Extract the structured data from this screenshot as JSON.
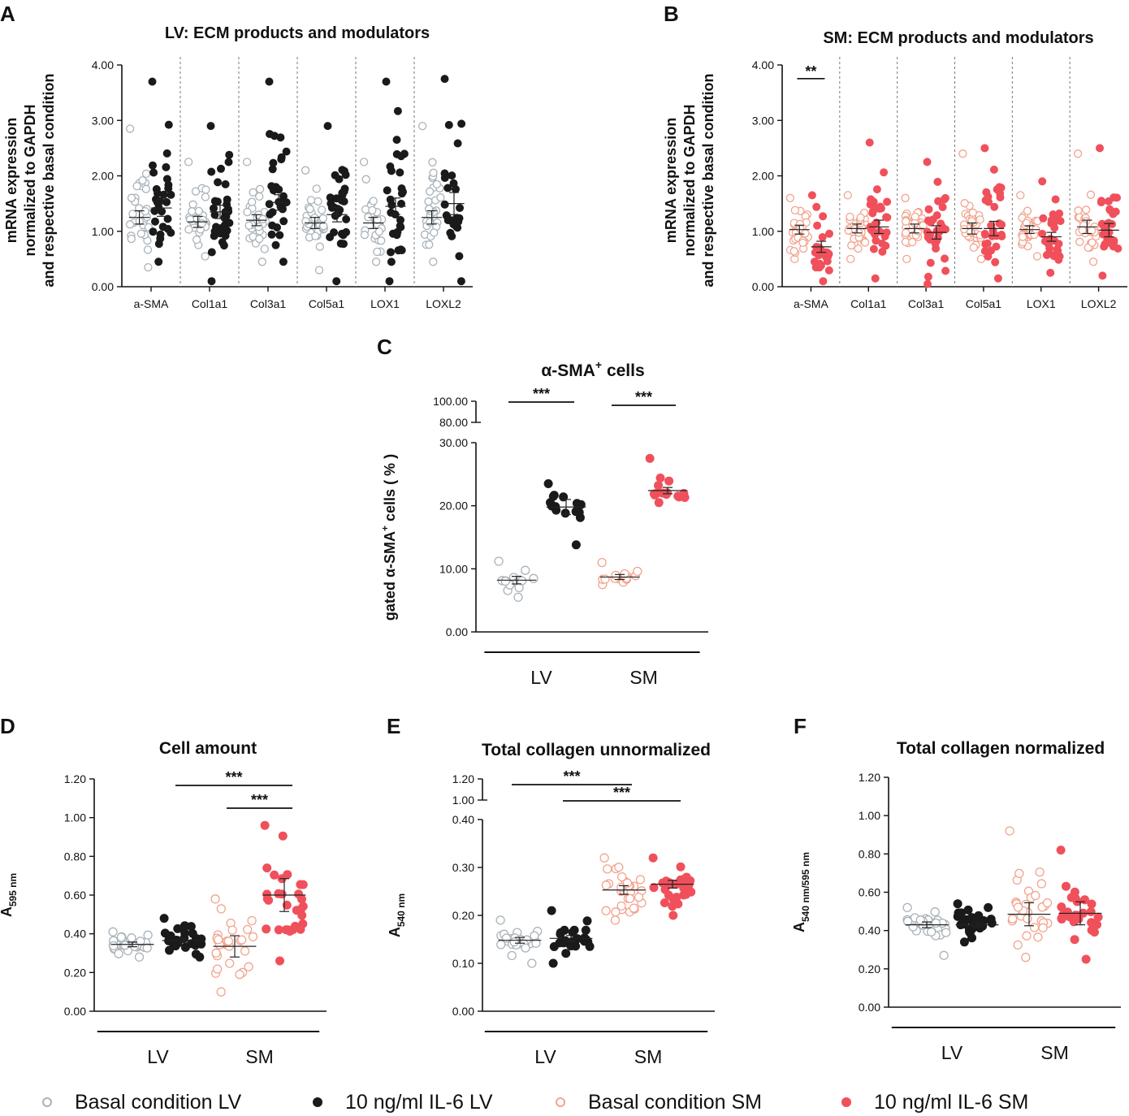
{
  "colors": {
    "basal_lv": "#a9b3ba",
    "il6_lv": "#1a1a1a",
    "basal_sm": "#f2a48f",
    "il6_sm": "#f0505b"
  },
  "legend": [
    {
      "label": "Basal condition LV",
      "group": "basal_lv",
      "marker": "hollow-circle-icon"
    },
    {
      "label": "10 ng/ml IL-6 LV",
      "group": "il6_lv",
      "marker": "filled-circle-icon"
    },
    {
      "label": "Basal condition SM",
      "group": "basal_sm",
      "marker": "hollow-circle-icon"
    },
    {
      "label": "10 ng/ml IL-6 SM",
      "group": "il6_sm",
      "marker": "filled-circle-icon"
    }
  ],
  "chart_data": [
    {
      "id": "A",
      "panel_letter": "A",
      "type": "scatter",
      "title": "LV: ECM products and modulators",
      "ylabel_lines": [
        "mRNA expression",
        "normalized to GAPDH",
        "and respective basal condition"
      ],
      "ylim": [
        0,
        4
      ],
      "yticks": [
        "0.00",
        "1.00",
        "2.00",
        "3.00",
        "4.00"
      ],
      "categories": [
        "a-SMA",
        "Col1a1",
        "Col3a1",
        "Col5a1",
        "LOX1",
        "LOXL2"
      ],
      "series_groups": [
        "basal_lv",
        "il6_lv"
      ],
      "groups": [
        {
          "category": "a-SMA",
          "series": [
            {
              "group": "basal_lv",
              "mean": 1.25,
              "sem": 0.12,
              "n": 30,
              "min": 0.35,
              "max": 2.85
            },
            {
              "group": "il6_lv",
              "mean": 1.42,
              "sem": 0.15,
              "n": 30,
              "min": 0.45,
              "max": 3.7
            }
          ]
        },
        {
          "category": "Col1a1",
          "series": [
            {
              "group": "basal_lv",
              "mean": 1.17,
              "sem": 0.1,
              "n": 30,
              "min": 0.55,
              "max": 2.25
            },
            {
              "group": "il6_lv",
              "mean": 1.35,
              "sem": 0.12,
              "n": 32,
              "min": 0.1,
              "max": 2.9
            }
          ]
        },
        {
          "category": "Col3a1",
          "series": [
            {
              "group": "basal_lv",
              "mean": 1.2,
              "sem": 0.1,
              "n": 30,
              "min": 0.45,
              "max": 2.25
            },
            {
              "group": "il6_lv",
              "mean": 1.52,
              "sem": 0.14,
              "n": 30,
              "min": 0.45,
              "max": 3.7
            }
          ]
        },
        {
          "category": "Col5a1",
          "series": [
            {
              "group": "basal_lv",
              "mean": 1.15,
              "sem": 0.1,
              "n": 30,
              "min": 0.3,
              "max": 2.1
            },
            {
              "group": "il6_lv",
              "mean": 1.3,
              "sem": 0.13,
              "n": 30,
              "min": 0.1,
              "max": 2.9
            }
          ]
        },
        {
          "category": "LOX1",
          "series": [
            {
              "group": "basal_lv",
              "mean": 1.15,
              "sem": 0.1,
              "n": 30,
              "min": 0.45,
              "max": 2.25
            },
            {
              "group": "il6_lv",
              "mean": 1.45,
              "sem": 0.15,
              "n": 30,
              "min": 0.1,
              "max": 3.7
            }
          ]
        },
        {
          "category": "LOXL2",
          "series": [
            {
              "group": "basal_lv",
              "mean": 1.25,
              "sem": 0.12,
              "n": 30,
              "min": 0.45,
              "max": 2.9
            },
            {
              "group": "il6_lv",
              "mean": 1.5,
              "sem": 0.2,
              "n": 30,
              "min": 0.1,
              "max": 3.75
            }
          ]
        }
      ],
      "significance": []
    },
    {
      "id": "B",
      "panel_letter": "B",
      "type": "scatter",
      "title": "SM: ECM products and modulators",
      "ylabel_lines": [
        "mRNA expression",
        "normalized to GAPDH",
        "and respective basal condition"
      ],
      "ylim": [
        0,
        4
      ],
      "yticks": [
        "0.00",
        "1.00",
        "2.00",
        "3.00",
        "4.00"
      ],
      "categories": [
        "a-SMA",
        "Col1a1",
        "Col3a1",
        "Col5a1",
        "LOX1",
        "LOXL2"
      ],
      "series_groups": [
        "basal_sm",
        "il6_sm"
      ],
      "groups": [
        {
          "category": "a-SMA",
          "series": [
            {
              "group": "basal_sm",
              "mean": 1.03,
              "sem": 0.08,
              "n": 30,
              "min": 0.5,
              "max": 1.6
            },
            {
              "group": "il6_sm",
              "mean": 0.72,
              "sem": 0.1,
              "n": 30,
              "min": 0.1,
              "max": 1.65
            }
          ]
        },
        {
          "category": "Col1a1",
          "series": [
            {
              "group": "basal_sm",
              "mean": 1.05,
              "sem": 0.08,
              "n": 30,
              "min": 0.5,
              "max": 1.65
            },
            {
              "group": "il6_sm",
              "mean": 1.08,
              "sem": 0.12,
              "n": 30,
              "min": 0.15,
              "max": 2.6
            }
          ]
        },
        {
          "category": "Col3a1",
          "series": [
            {
              "group": "basal_sm",
              "mean": 1.05,
              "sem": 0.08,
              "n": 30,
              "min": 0.5,
              "max": 1.6
            },
            {
              "group": "il6_sm",
              "mean": 0.98,
              "sem": 0.12,
              "n": 30,
              "min": 0.05,
              "max": 2.25
            }
          ]
        },
        {
          "category": "Col5a1",
          "series": [
            {
              "group": "basal_sm",
              "mean": 1.05,
              "sem": 0.1,
              "n": 30,
              "min": 0.5,
              "max": 2.4
            },
            {
              "group": "il6_sm",
              "mean": 1.05,
              "sem": 0.13,
              "n": 30,
              "min": 0.15,
              "max": 2.5
            }
          ]
        },
        {
          "category": "LOX1",
          "series": [
            {
              "group": "basal_sm",
              "mean": 1.03,
              "sem": 0.07,
              "n": 30,
              "min": 0.55,
              "max": 1.65
            },
            {
              "group": "il6_sm",
              "mean": 0.9,
              "sem": 0.08,
              "n": 30,
              "min": 0.25,
              "max": 1.9
            }
          ]
        },
        {
          "category": "LOXL2",
          "series": [
            {
              "group": "basal_sm",
              "mean": 1.08,
              "sem": 0.12,
              "n": 30,
              "min": 0.45,
              "max": 2.4
            },
            {
              "group": "il6_sm",
              "mean": 1.02,
              "sem": 0.12,
              "n": 30,
              "min": 0.2,
              "max": 2.5
            }
          ]
        }
      ],
      "significance": [
        {
          "from_series": 0,
          "to_series": 1,
          "category": "a-SMA",
          "label": "**",
          "y": 3.9
        }
      ]
    },
    {
      "id": "C",
      "panel_letter": "C",
      "type": "scatter",
      "title_main": "α-SMA",
      "title_sup": "+",
      "title_tail": " cells",
      "ylabel_main": "gated α-SMA",
      "ylabel_sup": "+",
      "ylabel_tail": " cells ( % )",
      "ylim": [
        0,
        30
      ],
      "yticks": [
        "0.00",
        "10.00",
        "20.00",
        "30.00"
      ],
      "broken_axis_upper_ticks": [
        "80.00",
        "100.00"
      ],
      "x_groups": [
        "LV",
        "SM"
      ],
      "series": [
        {
          "group": "basal_lv",
          "mean": 8.2,
          "sem": 0.6,
          "n": 15,
          "min": 5.5,
          "max": 11.2
        },
        {
          "group": "il6_lv",
          "mean": 19.8,
          "sem": 1.2,
          "n": 15,
          "min": 13.8,
          "max": 23.5
        },
        {
          "group": "basal_sm",
          "mean": 8.7,
          "sem": 0.4,
          "n": 15,
          "min": 7.5,
          "max": 11.0
        },
        {
          "group": "il6_sm",
          "mean": 22.4,
          "sem": 0.5,
          "n": 15,
          "min": 20.5,
          "max": 27.5
        }
      ],
      "significance": [
        {
          "from": 0,
          "to": 1,
          "label": "***"
        },
        {
          "from": 2,
          "to": 3,
          "label": "***"
        }
      ]
    },
    {
      "id": "D",
      "panel_letter": "D",
      "type": "scatter",
      "title": "Cell amount",
      "ylabel_main": "A",
      "ylabel_sub": "595 nm",
      "ylim": [
        0,
        1.2
      ],
      "yticks": [
        "0.00",
        "0.20",
        "0.40",
        "0.60",
        "0.80",
        "1.00",
        "1.20"
      ],
      "x_groups": [
        "LV",
        "SM"
      ],
      "series": [
        {
          "group": "basal_lv",
          "mean": 0.345,
          "sem": 0.012,
          "n": 30,
          "min": 0.28,
          "max": 0.41
        },
        {
          "group": "il6_lv",
          "mean": 0.365,
          "sem": 0.012,
          "n": 30,
          "min": 0.28,
          "max": 0.48
        },
        {
          "group": "basal_sm",
          "mean": 0.335,
          "sem": 0.055,
          "n": 30,
          "min": 0.1,
          "max": 0.58
        },
        {
          "group": "il6_sm",
          "mean": 0.6,
          "sem": 0.085,
          "n": 30,
          "min": 0.26,
          "max": 0.96
        }
      ],
      "significance": [
        {
          "from": 1,
          "to": 3,
          "label": "***"
        },
        {
          "from": 2,
          "to": 3,
          "label": "***"
        }
      ]
    },
    {
      "id": "E",
      "panel_letter": "E",
      "type": "scatter",
      "title": "Total collagen unnormalized",
      "ylabel_main": "A",
      "ylabel_sub": "540 nm",
      "ylim": [
        0,
        0.4
      ],
      "yticks": [
        "0.00",
        "0.10",
        "0.20",
        "0.30",
        "0.40"
      ],
      "broken_axis_upper_ticks": [
        "1.00",
        "1.20"
      ],
      "x_groups": [
        "LV",
        "SM"
      ],
      "series": [
        {
          "group": "basal_lv",
          "mean": 0.148,
          "sem": 0.006,
          "n": 30,
          "min": 0.1,
          "max": 0.19
        },
        {
          "group": "il6_lv",
          "mean": 0.152,
          "sem": 0.006,
          "n": 30,
          "min": 0.1,
          "max": 0.21
        },
        {
          "group": "basal_sm",
          "mean": 0.253,
          "sem": 0.009,
          "n": 30,
          "min": 0.19,
          "max": 0.32
        },
        {
          "group": "il6_sm",
          "mean": 0.265,
          "sem": 0.008,
          "n": 30,
          "min": 0.2,
          "max": 0.32
        }
      ],
      "significance": [
        {
          "from": 0,
          "to": 2,
          "label": "***"
        },
        {
          "from": 1,
          "to": 3,
          "label": "***"
        }
      ]
    },
    {
      "id": "F",
      "panel_letter": "F",
      "type": "scatter",
      "title": "Total collagen normalized",
      "ylabel_main": "A",
      "ylabel_sub": "540 nm/595 nm",
      "ylim": [
        0,
        1.2
      ],
      "yticks": [
        "0.00",
        "0.20",
        "0.40",
        "0.60",
        "0.80",
        "1.00",
        "1.20"
      ],
      "x_groups": [
        "LV",
        "SM"
      ],
      "series": [
        {
          "group": "basal_lv",
          "mean": 0.43,
          "sem": 0.015,
          "n": 30,
          "min": 0.27,
          "max": 0.52
        },
        {
          "group": "il6_lv",
          "mean": 0.43,
          "sem": 0.012,
          "n": 30,
          "min": 0.34,
          "max": 0.54
        },
        {
          "group": "basal_sm",
          "mean": 0.485,
          "sem": 0.06,
          "n": 30,
          "min": 0.26,
          "max": 0.92
        },
        {
          "group": "il6_sm",
          "mean": 0.49,
          "sem": 0.06,
          "n": 30,
          "min": 0.25,
          "max": 0.82
        }
      ],
      "significance": []
    }
  ]
}
